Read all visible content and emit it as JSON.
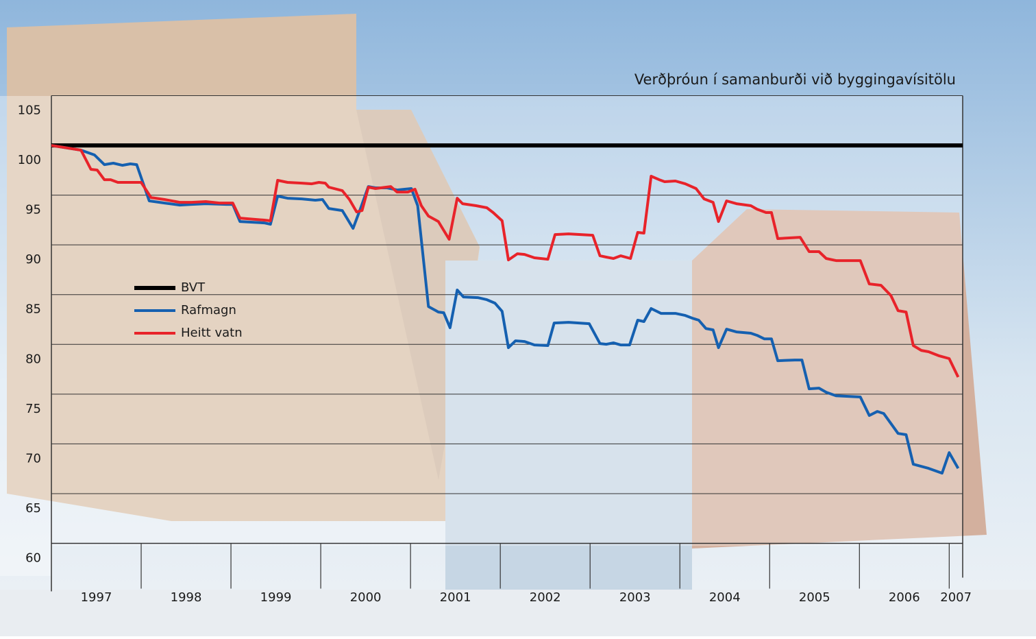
{
  "chart_data": {
    "type": "line",
    "title": "Verðþróun í samanburði við byggingavísitölu",
    "xlim": [
      1997,
      2007.15
    ],
    "xticks": [
      1998,
      1999,
      2000,
      2001,
      2002,
      2003,
      2004,
      2005,
      2006,
      2007
    ],
    "year_labels": [
      "1997",
      "1998",
      "1999",
      "2000",
      "2001",
      "2002",
      "2003",
      "2004",
      "2005",
      "2006",
      "2007"
    ],
    "ylim": [
      60,
      105
    ],
    "yticks": [
      60,
      65,
      70,
      75,
      80,
      85,
      90,
      95,
      100,
      105
    ],
    "grid": true,
    "series": [
      {
        "name": "BVT",
        "color": "#000000",
        "x": [
          1997,
          2007.15
        ],
        "values": [
          100,
          100
        ]
      },
      {
        "name": "Rafmagn",
        "color": "#1560b0",
        "x": [
          1997.0,
          1997.33,
          1997.48,
          1997.59,
          1997.69,
          1997.79,
          1997.88,
          1997.95,
          1998.09,
          1998.26,
          1998.43,
          1998.56,
          1998.72,
          1998.95,
          1999.02,
          1999.1,
          1999.37,
          1999.44,
          1999.52,
          1999.63,
          1999.79,
          1999.94,
          2000.02,
          2000.09,
          2000.24,
          2000.36,
          2000.44,
          2000.53,
          2000.61,
          2000.74,
          2000.85,
          2001.01,
          2001.08,
          2001.2,
          2001.31,
          2001.37,
          2001.44,
          2001.52,
          2001.59,
          2001.75,
          2001.85,
          2001.94,
          2002.02,
          2002.09,
          2002.17,
          2002.27,
          2002.38,
          2002.53,
          2002.6,
          2002.76,
          2002.99,
          2003.11,
          2003.18,
          2003.26,
          2003.34,
          2003.44,
          2003.53,
          2003.6,
          2003.68,
          2003.79,
          2003.95,
          2004.06,
          2004.14,
          2004.21,
          2004.29,
          2004.37,
          2004.43,
          2004.52,
          2004.63,
          2004.79,
          2004.86,
          2004.94,
          2005.02,
          2005.09,
          2005.28,
          2005.36,
          2005.44,
          2005.55,
          2005.63,
          2005.74,
          2006.01,
          2006.11,
          2006.2,
          2006.27,
          2006.43,
          2006.52,
          2006.6,
          2006.77,
          2006.92,
          2007.0,
          2007.1
        ],
        "values": [
          100.0,
          99.52,
          99.04,
          98.07,
          98.21,
          98.0,
          98.14,
          98.07,
          94.42,
          94.21,
          94.0,
          94.07,
          94.14,
          94.07,
          94.07,
          92.35,
          92.21,
          92.07,
          94.9,
          94.69,
          94.62,
          94.49,
          94.56,
          93.66,
          93.45,
          91.66,
          93.59,
          95.86,
          95.73,
          95.73,
          95.52,
          95.66,
          93.94,
          83.8,
          83.25,
          83.18,
          81.67,
          85.46,
          84.77,
          84.7,
          84.49,
          84.15,
          83.32,
          79.67,
          80.36,
          80.29,
          79.94,
          79.88,
          82.15,
          82.22,
          82.08,
          80.08,
          80.01,
          80.15,
          79.94,
          79.94,
          82.43,
          82.29,
          83.6,
          83.11,
          83.11,
          82.91,
          82.63,
          82.43,
          81.6,
          81.46,
          79.67,
          81.53,
          81.25,
          81.12,
          80.91,
          80.56,
          80.56,
          78.36,
          78.43,
          78.43,
          75.53,
          75.6,
          75.19,
          74.84,
          74.71,
          72.85,
          73.26,
          73.05,
          71.05,
          70.92,
          67.95,
          67.54,
          67.06,
          69.12,
          67.54
        ]
      },
      {
        "name": "Heitt vatn",
        "color": "#e8232a",
        "x": [
          1997.0,
          1997.33,
          1997.44,
          1997.51,
          1997.59,
          1997.66,
          1997.74,
          1998.0,
          1998.11,
          1998.26,
          1998.43,
          1998.56,
          1998.72,
          1998.87,
          1999.02,
          1999.1,
          1999.37,
          1999.44,
          1999.52,
          1999.63,
          1999.79,
          1999.9,
          1999.98,
          2000.05,
          2000.09,
          2000.24,
          2000.32,
          2000.4,
          2000.46,
          2000.53,
          2000.61,
          2000.78,
          2000.85,
          2000.97,
          2001.05,
          2001.12,
          2001.2,
          2001.31,
          2001.43,
          2001.52,
          2001.58,
          2001.73,
          2001.85,
          2001.92,
          2002.02,
          2002.09,
          2002.19,
          2002.27,
          2002.38,
          2002.53,
          2002.61,
          2002.76,
          2003.03,
          2003.11,
          2003.18,
          2003.26,
          2003.34,
          2003.45,
          2003.53,
          2003.6,
          2003.68,
          2003.77,
          2003.83,
          2003.95,
          2004.06,
          2004.18,
          2004.27,
          2004.37,
          2004.43,
          2004.52,
          2004.63,
          2004.79,
          2004.86,
          2004.96,
          2005.02,
          2005.09,
          2005.34,
          2005.44,
          2005.55,
          2005.63,
          2005.74,
          2006.01,
          2006.11,
          2006.24,
          2006.35,
          2006.43,
          2006.52,
          2006.6,
          2006.69,
          2006.77,
          2006.89,
          2007.0,
          2007.1
        ],
        "values": [
          100.0,
          99.52,
          97.59,
          97.52,
          96.55,
          96.55,
          96.28,
          96.28,
          94.76,
          94.56,
          94.28,
          94.28,
          94.35,
          94.21,
          94.21,
          92.69,
          92.49,
          92.42,
          96.49,
          96.28,
          96.21,
          96.14,
          96.28,
          96.21,
          95.8,
          95.45,
          94.56,
          93.31,
          93.45,
          95.8,
          95.66,
          95.86,
          95.31,
          95.31,
          95.59,
          93.94,
          92.9,
          92.35,
          90.56,
          94.69,
          94.14,
          93.94,
          93.73,
          93.25,
          92.42,
          88.49,
          89.11,
          89.04,
          88.7,
          88.56,
          91.04,
          91.11,
          90.97,
          88.9,
          88.77,
          88.63,
          88.9,
          88.63,
          91.25,
          91.18,
          96.9,
          96.55,
          96.35,
          96.42,
          96.14,
          95.66,
          94.62,
          94.28,
          92.35,
          94.42,
          94.14,
          93.94,
          93.59,
          93.25,
          93.25,
          90.63,
          90.76,
          89.32,
          89.32,
          88.63,
          88.42,
          88.42,
          86.08,
          85.94,
          84.91,
          83.39,
          83.25,
          79.88,
          79.39,
          79.26,
          78.84,
          78.57,
          76.71
        ]
      }
    ]
  }
}
